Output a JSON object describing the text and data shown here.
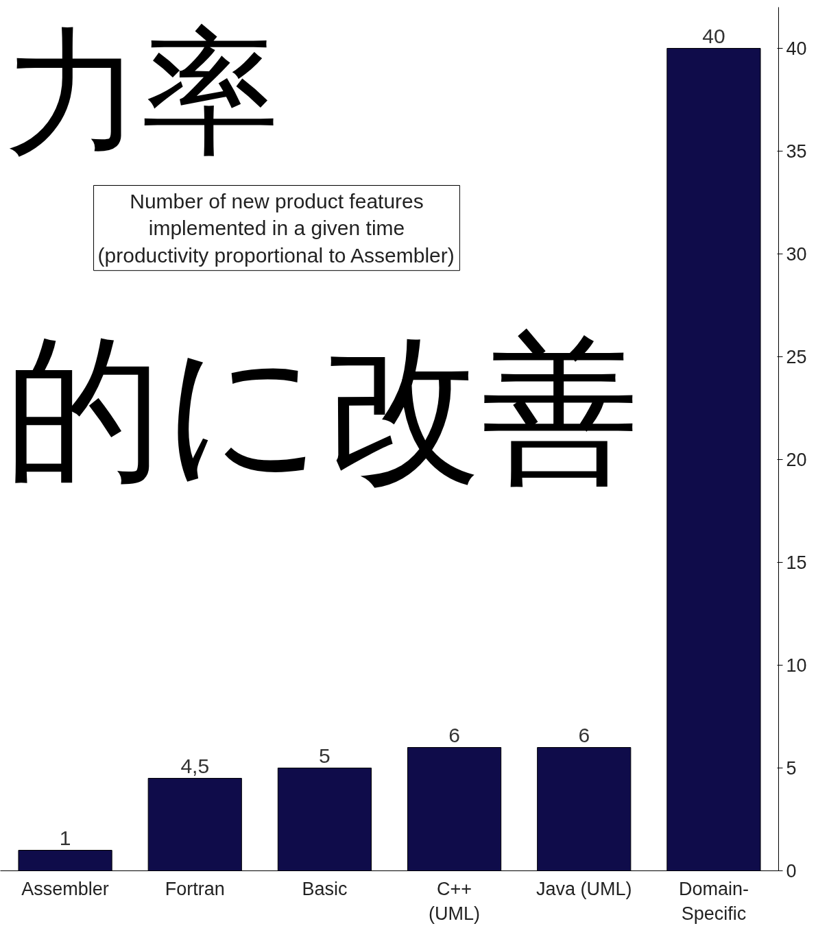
{
  "chart_data": {
    "type": "bar",
    "categories": [
      "Assembler",
      "Fortran",
      "Basic",
      "C++\n(UML)",
      "Java (UML)",
      "Domain-\nSpecific"
    ],
    "values": [
      1,
      4.5,
      5,
      6,
      6,
      40
    ],
    "value_labels": [
      "1",
      "4,5",
      "5",
      "6",
      "6",
      "40"
    ],
    "color": "#0f0c4a",
    "ylim": [
      0,
      42
    ],
    "yticks": [
      0,
      5,
      10,
      15,
      20,
      25,
      30,
      35,
      40
    ],
    "grid": false,
    "annotations": [
      "Number of new product features\nimplemented in a given time\n(productivity proportional to Assembler)",
      "力率",
      "的に改善"
    ]
  }
}
